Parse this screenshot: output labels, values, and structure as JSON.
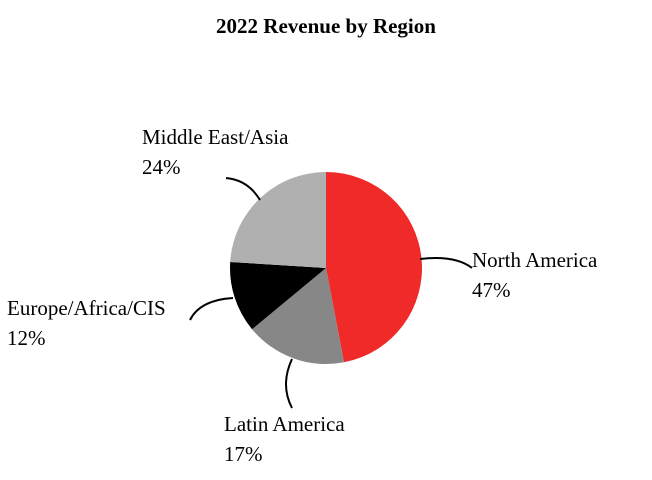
{
  "chart_data": {
    "type": "pie",
    "title": "2022 Revenue by Region",
    "slices": [
      {
        "name": "North America",
        "value": 47,
        "value_label": "47%",
        "color": "#ef2a28"
      },
      {
        "name": "Latin America",
        "value": 17,
        "value_label": "17%",
        "color": "#878787"
      },
      {
        "name": "Europe/Africa/CIS",
        "value": 12,
        "value_label": "12%",
        "color": "#000000"
      },
      {
        "name": "Middle East/Asia",
        "value": 24,
        "value_label": "24%",
        "color": "#b0b0b0"
      }
    ],
    "start_angle": "12 o'clock",
    "direction": "clockwise",
    "legend": "none"
  }
}
